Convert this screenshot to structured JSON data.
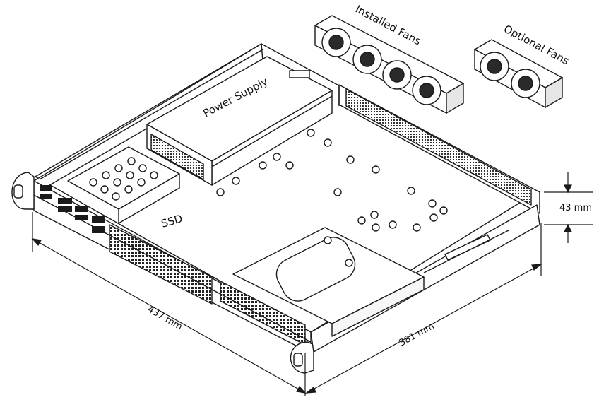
{
  "labels": {
    "power_supply": "Power Supply",
    "ssd": "SSD",
    "installed_fans": "Installed Fans",
    "optional_fans": "Optional Fans"
  },
  "dimensions": {
    "width": "437 mm",
    "depth": "381 mm",
    "height": "43 mm"
  },
  "colors": {
    "line": "#1a1a1a",
    "fill_light": "#f7f7f7",
    "fill_mid": "#e6e6e6",
    "fill_dark": "#2a2a2a"
  }
}
